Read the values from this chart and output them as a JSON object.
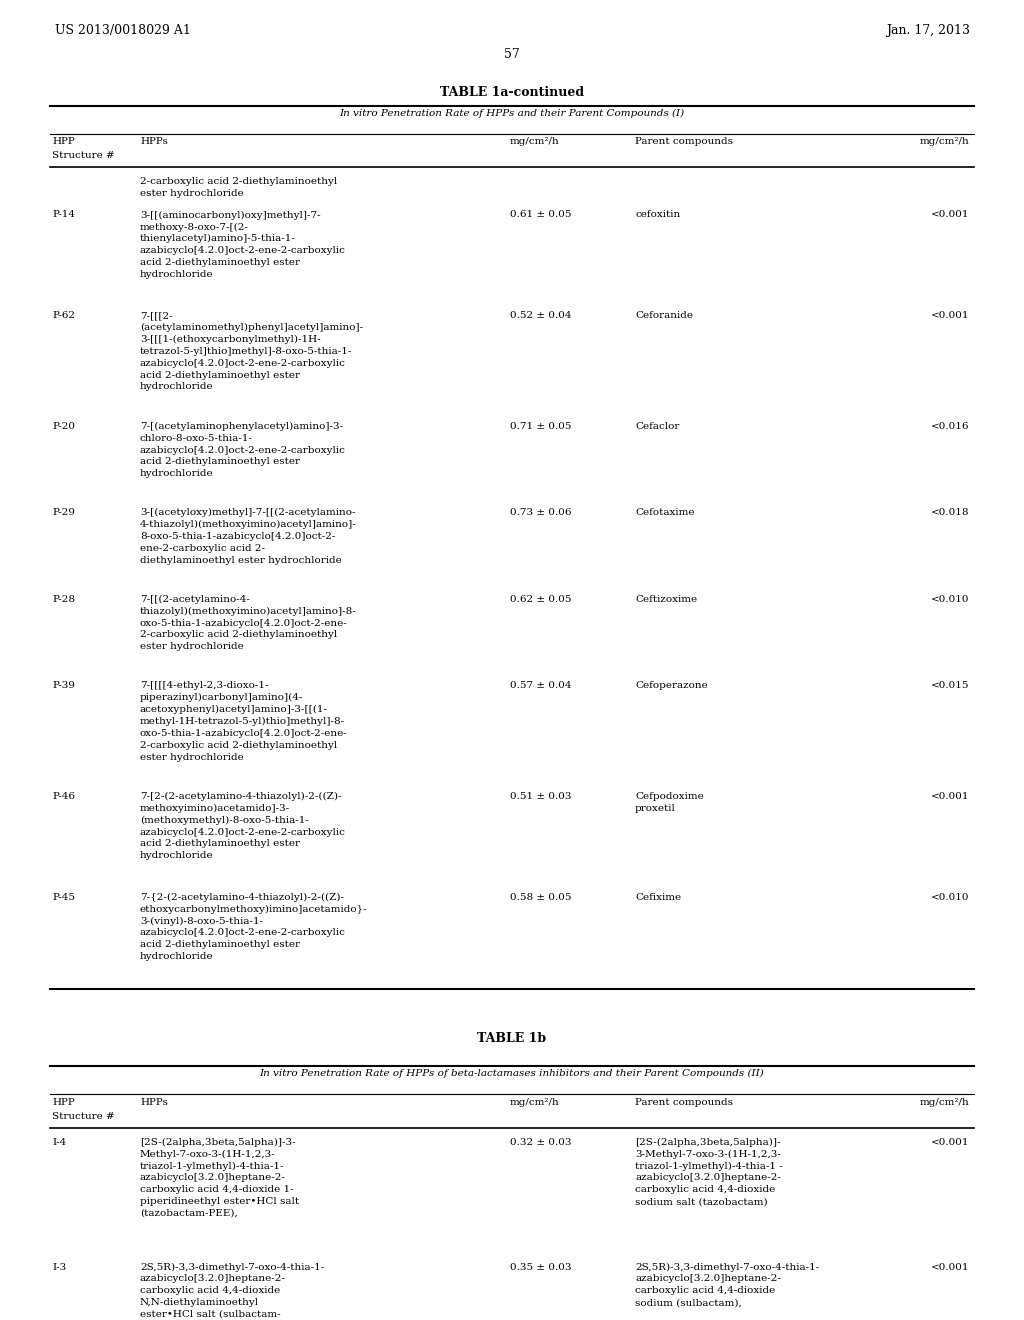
{
  "header_left": "US 2013/0018029 A1",
  "header_right": "Jan. 17, 2013",
  "page_number": "57",
  "table1a_title": "TABLE 1a-continued",
  "table1a_subtitle": "In vitro Penetration Rate of HPPs and their Parent Compounds (I)",
  "col_headers": [
    "HPP\nStructure #",
    "HPPs",
    "mg/cm²/h",
    "Parent compounds",
    "mg/cm²/h"
  ],
  "table1a_rows": [
    {
      "structure": "",
      "hpp": "2-carboxylic acid 2-diethylaminoethyl\nester hydrochloride",
      "rate": "",
      "parent": "",
      "parent_rate": ""
    },
    {
      "structure": "P-14",
      "hpp": "3-[[(aminocarbonyl)oxy]methyl]-7-\nmethoxy-8-oxo-7-[(2-\nthienylacetyl)amino]-5-thia-1-\nazabicyclo[4.2.0]oct-2-ene-2-carboxylic\nacid 2-diethylaminoethyl ester\nhydrochloride",
      "rate": "0.61 ± 0.05",
      "parent": "cefoxitin",
      "parent_rate": "<0.001"
    },
    {
      "structure": "P-62",
      "hpp": "7-[[[2-\n(acetylaminomethyl)phenyl]acetyl]amino]-\n3-[[[1-(ethoxycarbonylmethyl)-1H-\ntetrazol-5-yl]thio]methyl]-8-oxo-5-thia-1-\nazabicyclo[4.2.0]oct-2-ene-2-carboxylic\nacid 2-diethylaminoethyl ester\nhydrochloride",
      "rate": "0.52 ± 0.04",
      "parent": "Ceforanide",
      "parent_rate": "<0.001"
    },
    {
      "structure": "P-20",
      "hpp": "7-[(acetylaminophenylacetyl)amino]-3-\nchloro-8-oxo-5-thia-1-\nazabicyclo[4.2.0]oct-2-ene-2-carboxylic\nacid 2-diethylaminoethyl ester\nhydrochloride",
      "rate": "0.71 ± 0.05",
      "parent": "Cefaclor",
      "parent_rate": "<0.016"
    },
    {
      "structure": "P-29",
      "hpp": "3-[(acetyloxy)methyl]-7-[[(2-acetylamino-\n4-thiazolyl)(methoxyimino)acetyl]amino]-\n8-oxo-5-thia-1-azabicyclo[4.2.0]oct-2-\nene-2-carboxylic acid 2-\ndiethylaminoethyl ester hydrochloride",
      "rate": "0.73 ± 0.06",
      "parent": "Cefotaxime",
      "parent_rate": "<0.018"
    },
    {
      "structure": "P-28",
      "hpp": "7-[[(2-acetylamino-4-\nthiazolyl)(methoxyimino)acetyl]amino]-8-\noxo-5-thia-1-azabicyclo[4.2.0]oct-2-ene-\n2-carboxylic acid 2-diethylaminoethyl\nester hydrochloride",
      "rate": "0.62 ± 0.05",
      "parent": "Ceftizoxime",
      "parent_rate": "<0.010"
    },
    {
      "structure": "P-39",
      "hpp": "7-[[[[4-ethyl-2,3-dioxo-1-\npiperazinyl)carbonyl]amino](4-\nacetoxyphenyl)acetyl]amino]-3-[[(1-\nmethyl-1H-tetrazol-5-yl)thio]methyl]-8-\noxo-5-thia-1-azabicyclo[4.2.0]oct-2-ene-\n2-carboxylic acid 2-diethylaminoethyl\nester hydrochloride",
      "rate": "0.57 ± 0.04",
      "parent": "Cefoperazone",
      "parent_rate": "<0.015"
    },
    {
      "structure": "P-46",
      "hpp": "7-[2-(2-acetylamino-4-thiazolyl)-2-((Z)-\nmethoxyimino)acetamido]-3-\n(methoxymethyl)-8-oxo-5-thia-1-\nazabicyclo[4.2.0]oct-2-ene-2-carboxylic\nacid 2-diethylaminoethyl ester\nhydrochloride",
      "rate": "0.51 ± 0.03",
      "parent": "Cefpodoxime\nproxetil",
      "parent_rate": "<0.001"
    },
    {
      "structure": "P-45",
      "hpp": "7-{2-(2-acetylamino-4-thiazolyl)-2-((Z)-\nethoxycarbonylmethoxy)imino]acetamido}-\n3-(vinyl)-8-oxo-5-thia-1-\nazabicyclo[4.2.0]oct-2-ene-2-carboxylic\nacid 2-diethylaminoethyl ester\nhydrochloride",
      "rate": "0.58 ± 0.05",
      "parent": "Cefixime",
      "parent_rate": "<0.010"
    }
  ],
  "table1b_title": "TABLE 1b",
  "table1b_subtitle": "In vitro Penetration Rate of HPPs of beta-lactamases inhibitors and their Parent Compounds (II)",
  "table1b_rows": [
    {
      "structure": "I-4",
      "hpp": "[2S-(2alpha,3beta,5alpha)]-3-\nMethyl-7-oxo-3-(1H-1,2,3-\ntriazol-1-ylmethyl)-4-thia-1-\nazabicyclo[3.2.0]heptane-2-\ncarboxylic acid 4,4-dioxide 1-\npiperidineethyl ester•HCl salt\n(tazobactam-PEE),",
      "rate": "0.32 ± 0.03",
      "parent": "[2S-(2alpha,3beta,5alpha)]-\n3-Methyl-7-oxo-3-(1H-1,2,3-\ntriazol-1-ylmethyl)-4-thia-1 -\nazabicyclo[3.2.0]heptane-2-\ncarboxylic acid 4,4-dioxide\nsodium salt (tazobactam)",
      "parent_rate": "<0.001"
    },
    {
      "structure": "I-3",
      "hpp": "2S,5R)-3,3-dimethyl-7-oxo-4-thia-1-\nazabicyclo[3.2.0]heptane-2-\ncarboxylic acid 4,4-dioxide\nN,N-diethylaminoethyl\nester•HCl salt (sulbactam-",
      "rate": "0.35 ± 0.03",
      "parent": "2S,5R)-3,3-dimethyl-7-oxo-4-thia-1-\nazabicyclo[3.2.0]heptane-2-\ncarboxylic acid 4,4-dioxide\nsodium (sulbactam),",
      "parent_rate": "<0.001"
    }
  ]
}
